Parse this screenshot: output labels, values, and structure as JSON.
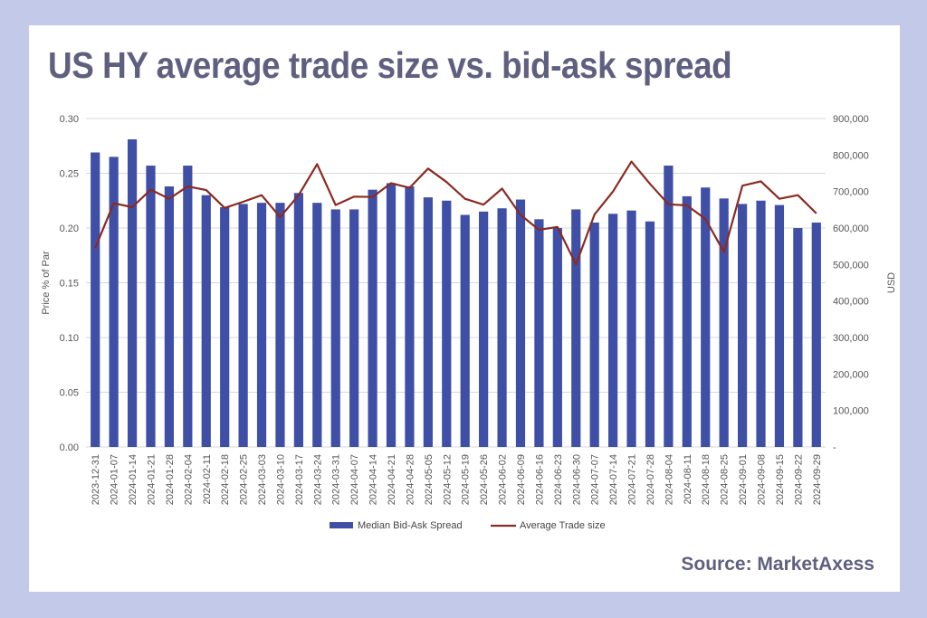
{
  "title": "US HY average trade size vs. bid-ask spread",
  "source": "Source: MarketAxess",
  "colors": {
    "bar": "#3f4fa6",
    "line": "#8b2a22",
    "background": "#c3c9e8",
    "title": "#5f6080"
  },
  "chart_data": {
    "type": "bar",
    "secondary_type": "line",
    "categories": [
      "2023-12-31",
      "2024-01-07",
      "2024-01-14",
      "2024-01-21",
      "2024-01-28",
      "2024-02-04",
      "2024-02-11",
      "2024-02-18",
      "2024-02-25",
      "2024-03-03",
      "2024-03-10",
      "2024-03-17",
      "2024-03-24",
      "2024-03-31",
      "2024-04-07",
      "2024-04-14",
      "2024-04-21",
      "2024-04-28",
      "2024-05-05",
      "2024-05-12",
      "2024-05-19",
      "2024-05-26",
      "2024-06-02",
      "2024-06-09",
      "2024-06-16",
      "2024-06-23",
      "2024-06-30",
      "2024-07-07",
      "2024-07-14",
      "2024-07-21",
      "2024-07-28",
      "2024-08-04",
      "2024-08-11",
      "2024-08-18",
      "2024-08-25",
      "2024-09-01",
      "2024-09-08",
      "2024-09-15",
      "2024-09-22",
      "2024-09-29"
    ],
    "series": [
      {
        "name": "Median Bid-Ask Spread",
        "axis": "left",
        "type": "bar",
        "values": [
          0.269,
          0.265,
          0.281,
          0.257,
          0.238,
          0.257,
          0.23,
          0.219,
          0.222,
          0.223,
          0.223,
          0.232,
          0.223,
          0.217,
          0.217,
          0.235,
          0.241,
          0.238,
          0.228,
          0.225,
          0.212,
          0.215,
          0.218,
          0.226,
          0.208,
          0.2,
          0.217,
          0.205,
          0.213,
          0.216,
          0.206,
          0.257,
          0.229,
          0.237,
          0.227,
          0.222,
          0.225,
          0.221,
          0.2,
          0.205
        ]
      },
      {
        "name": "Average Trade size",
        "axis": "right",
        "type": "line",
        "values": [
          545000,
          668000,
          657000,
          705000,
          680000,
          714000,
          704000,
          655000,
          672000,
          690000,
          630000,
          690000,
          775000,
          663000,
          686000,
          685000,
          723000,
          710000,
          763000,
          726000,
          680000,
          664000,
          708000,
          636000,
          595000,
          603000,
          500000,
          637000,
          700000,
          782000,
          721000,
          665000,
          662000,
          625000,
          534000,
          716000,
          728000,
          680000,
          690000,
          640000
        ]
      }
    ],
    "ylabel": "Price % of Par",
    "y2label": "USD",
    "ylim": [
      0,
      0.3
    ],
    "y2lim": [
      0,
      900000
    ],
    "yticks": [
      "0.00",
      "0.05",
      "0.10",
      "0.15",
      "0.20",
      "0.25",
      "0.30"
    ],
    "y2ticks": [
      "-",
      "100,000",
      "200,000",
      "300,000",
      "400,000",
      "500,000",
      "600,000",
      "700,000",
      "800,000",
      "900,000"
    ],
    "grid": true,
    "legend": "bottom"
  }
}
